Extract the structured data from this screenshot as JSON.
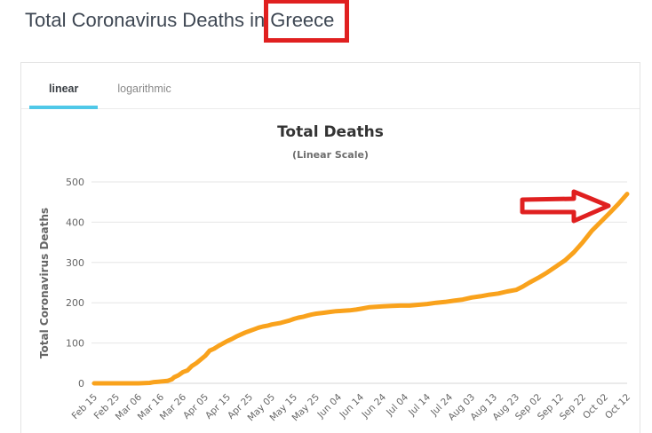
{
  "page": {
    "title_prefix": "Total Coronavirus Deaths in",
    "country": "Greece"
  },
  "tabs": {
    "items": [
      {
        "label": "linear",
        "active": true
      },
      {
        "label": "logarithmic",
        "active": false
      }
    ]
  },
  "colors": {
    "annotation_red": "#E02020",
    "active_tab_underline": "#4FC8E8",
    "series_orange": "#F9A21C",
    "gridline": "#e6e6e6",
    "axis_line": "#d4d4d4"
  },
  "chart_data": {
    "type": "line",
    "title": "Total Deaths",
    "subtitle": "(Linear Scale)",
    "ylabel": "Total Coronavirus Deaths",
    "xlabel": "",
    "ylim": [
      0,
      500
    ],
    "yticks": [
      0,
      100,
      200,
      300,
      400,
      500
    ],
    "grid": true,
    "legend": "none",
    "x_tick_interval_days": 10,
    "x_tick_labels": [
      "Feb 15",
      "Feb 25",
      "Mar 06",
      "Mar 16",
      "Mar 26",
      "Apr 05",
      "Apr 15",
      "Apr 25",
      "May 05",
      "May 15",
      "May 25",
      "Jun 04",
      "Jun 14",
      "Jun 24",
      "Jul 04",
      "Jul 14",
      "Jul 24",
      "Aug 03",
      "Aug 13",
      "Aug 23",
      "Sep 02",
      "Sep 12",
      "Sep 22",
      "Oct 02",
      "Oct 12"
    ],
    "series": [
      {
        "name": "Total Coronavirus Deaths",
        "color": "#F9A21C",
        "points_day_value": [
          [
            0,
            0
          ],
          [
            10,
            0
          ],
          [
            20,
            0
          ],
          [
            25,
            1
          ],
          [
            27,
            3
          ],
          [
            29,
            4
          ],
          [
            31,
            5
          ],
          [
            33,
            6
          ],
          [
            35,
            10
          ],
          [
            36,
            15
          ],
          [
            38,
            20
          ],
          [
            40,
            28
          ],
          [
            42,
            32
          ],
          [
            44,
            43
          ],
          [
            46,
            50
          ],
          [
            48,
            59
          ],
          [
            50,
            68
          ],
          [
            52,
            81
          ],
          [
            54,
            86
          ],
          [
            56,
            93
          ],
          [
            58,
            99
          ],
          [
            60,
            105
          ],
          [
            62,
            110
          ],
          [
            64,
            116
          ],
          [
            66,
            121
          ],
          [
            68,
            126
          ],
          [
            70,
            130
          ],
          [
            72,
            134
          ],
          [
            74,
            138
          ],
          [
            76,
            141
          ],
          [
            78,
            143
          ],
          [
            80,
            146
          ],
          [
            82,
            148
          ],
          [
            84,
            150
          ],
          [
            86,
            153
          ],
          [
            88,
            156
          ],
          [
            90,
            160
          ],
          [
            92,
            163
          ],
          [
            94,
            165
          ],
          [
            96,
            168
          ],
          [
            98,
            171
          ],
          [
            100,
            173
          ],
          [
            103,
            175
          ],
          [
            106,
            177
          ],
          [
            109,
            179
          ],
          [
            112,
            180
          ],
          [
            115,
            181
          ],
          [
            118,
            183
          ],
          [
            121,
            186
          ],
          [
            124,
            189
          ],
          [
            127,
            190
          ],
          [
            130,
            191
          ],
          [
            134,
            192
          ],
          [
            138,
            193
          ],
          [
            142,
            193
          ],
          [
            146,
            195
          ],
          [
            150,
            197
          ],
          [
            154,
            200
          ],
          [
            158,
            202
          ],
          [
            162,
            205
          ],
          [
            166,
            208
          ],
          [
            170,
            213
          ],
          [
            174,
            216
          ],
          [
            178,
            220
          ],
          [
            182,
            223
          ],
          [
            186,
            228
          ],
          [
            190,
            232
          ],
          [
            193,
            240
          ],
          [
            196,
            250
          ],
          [
            200,
            262
          ],
          [
            204,
            275
          ],
          [
            208,
            290
          ],
          [
            212,
            305
          ],
          [
            216,
            325
          ],
          [
            220,
            350
          ],
          [
            224,
            378
          ],
          [
            228,
            400
          ],
          [
            232,
            422
          ],
          [
            236,
            445
          ],
          [
            240,
            470
          ]
        ]
      }
    ]
  },
  "annotations": {
    "highlight_box": {
      "around": "Greece",
      "color": "#E02020"
    },
    "arrow": {
      "points_to": "latest value of curve",
      "color": "#E02020"
    }
  }
}
